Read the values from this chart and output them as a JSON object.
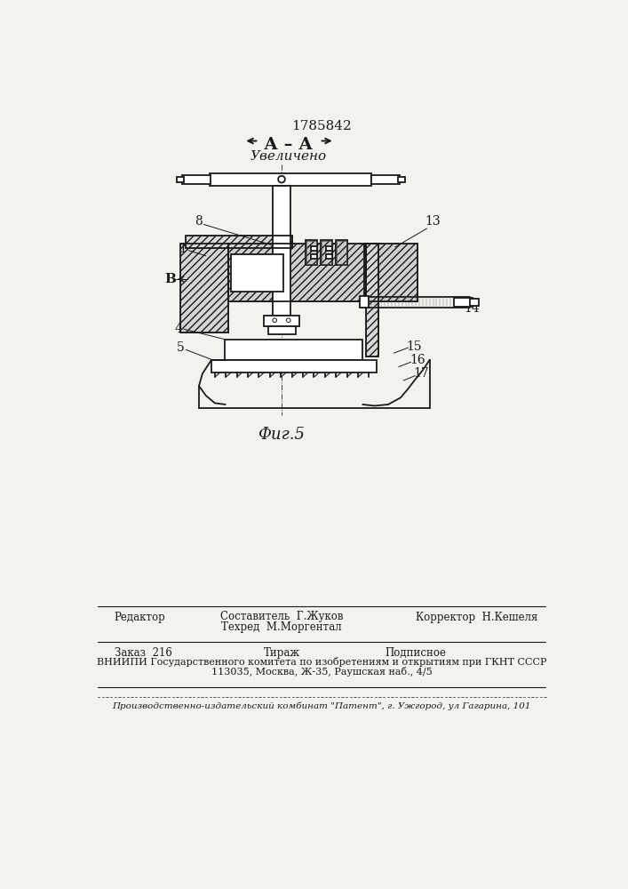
{
  "patent_number": "1785842",
  "section_label": "А – А",
  "section_sublabel": "Увеличено",
  "fig_label": "Фиг.5",
  "footer": {
    "line1_left": "Редактор",
    "line1_center1": "Составитель  Г.Жуков",
    "line1_center2": "Техред  М.Моргентал",
    "line1_right": "Корректор  Н.Кешеля",
    "line2_left": "Заказ  216",
    "line2_center": "Тираж",
    "line2_right": "Подписное",
    "line3": "ВНИИПИ Государственного комитета по изобретениям и открытиям при ГКНТ СССР",
    "line4": "113035, Москва, Ж-35, Раушская наб., 4/5",
    "line5": "Производственно-издательский комбинат \"Патент\", г. Ужгород, ул Гагарина, 101"
  },
  "bg_color": "#f2f2ee",
  "line_color": "#1a1a1a"
}
